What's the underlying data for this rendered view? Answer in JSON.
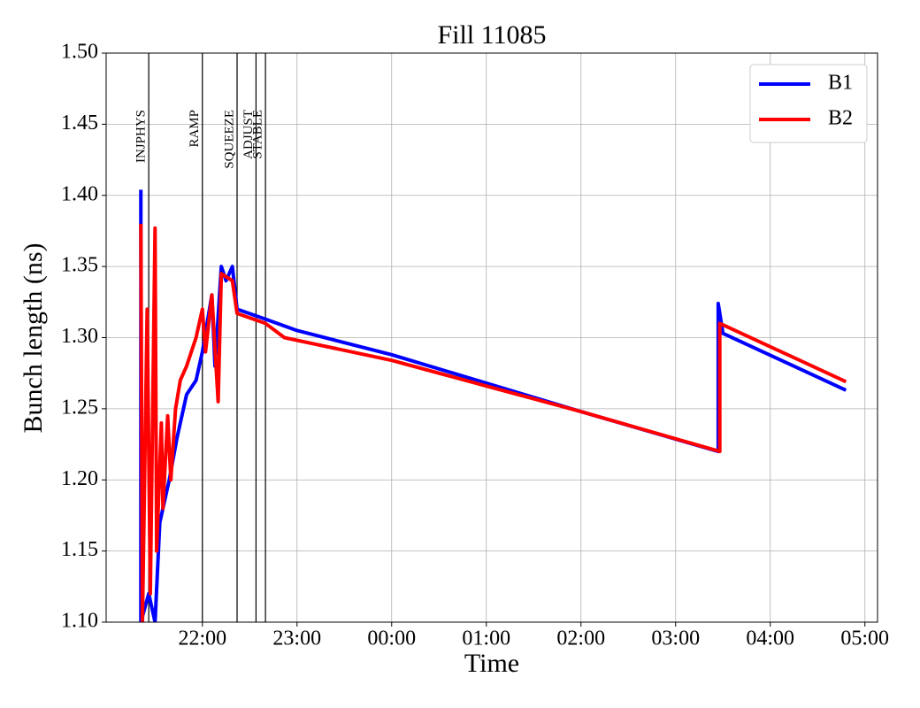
{
  "chart_data": {
    "type": "line",
    "title": "Fill 11085",
    "x_label": "Time",
    "y_label": "Bunch length (ns)",
    "xlim": [
      "20:59",
      "05:08"
    ],
    "xticks": [
      "22:00",
      "23:00",
      "00:00",
      "01:00",
      "02:00",
      "03:00",
      "04:00",
      "05:00"
    ],
    "ylim": [
      1.1,
      1.5
    ],
    "yticks": [
      {
        "value": 1.1,
        "label": "1.10"
      },
      {
        "value": 1.15,
        "label": "1.15"
      },
      {
        "value": 1.2,
        "label": "1.20"
      },
      {
        "value": 1.25,
        "label": "1.25"
      },
      {
        "value": 1.3,
        "label": "1.30"
      },
      {
        "value": 1.35,
        "label": "1.35"
      },
      {
        "value": 1.4,
        "label": "1.40"
      },
      {
        "value": 1.45,
        "label": "1.45"
      },
      {
        "value": 1.5,
        "label": "1.50"
      }
    ],
    "grid": true,
    "legend": "upper right",
    "phases": [
      {
        "label": "INJPHYS",
        "x": "21:26"
      },
      {
        "label": "RAMP",
        "x": "22:00"
      },
      {
        "label": "SQUEEZE",
        "x": "22:22"
      },
      {
        "label": "ADJUST",
        "x": "22:34"
      },
      {
        "label": "STABLE",
        "x": "22:40"
      }
    ],
    "series": [
      {
        "name": "B1",
        "color": "#0000ff",
        "x": [
          "21:21",
          "21:21",
          "21:26",
          "21:30",
          "21:33",
          "21:39",
          "21:44",
          "21:50",
          "21:56",
          "22:00",
          "22:03",
          "22:06",
          "22:08",
          "22:12",
          "22:15",
          "22:19",
          "22:22",
          "22:40",
          "23:00",
          "00:00",
          "01:00",
          "02:00",
          "03:27",
          "03:27",
          "03:30",
          "04:48"
        ],
        "values": [
          1.404,
          1.1,
          1.12,
          1.1,
          1.17,
          1.2,
          1.23,
          1.26,
          1.27,
          1.29,
          1.31,
          1.33,
          1.28,
          1.35,
          1.34,
          1.35,
          1.32,
          1.313,
          1.305,
          1.288,
          1.268,
          1.248,
          1.22,
          1.324,
          1.303,
          1.263
        ]
      },
      {
        "name": "B2",
        "color": "#ff0000",
        "x": [
          "21:21",
          "21:22",
          "21:25",
          "21:27",
          "21:30",
          "21:31",
          "21:34",
          "21:35",
          "21:38",
          "21:40",
          "21:43",
          "21:46",
          "21:50",
          "21:56",
          "22:00",
          "22:02",
          "22:06",
          "22:10",
          "22:12",
          "22:19",
          "22:22",
          "22:40",
          "22:52",
          "00:00",
          "01:00",
          "02:00",
          "03:28",
          "03:28",
          "04:48"
        ],
        "values": [
          1.38,
          1.1,
          1.32,
          1.12,
          1.377,
          1.15,
          1.24,
          1.18,
          1.245,
          1.2,
          1.25,
          1.27,
          1.28,
          1.3,
          1.32,
          1.29,
          1.33,
          1.255,
          1.345,
          1.34,
          1.317,
          1.31,
          1.3,
          1.284,
          1.266,
          1.248,
          1.22,
          1.31,
          1.269
        ]
      }
    ]
  }
}
